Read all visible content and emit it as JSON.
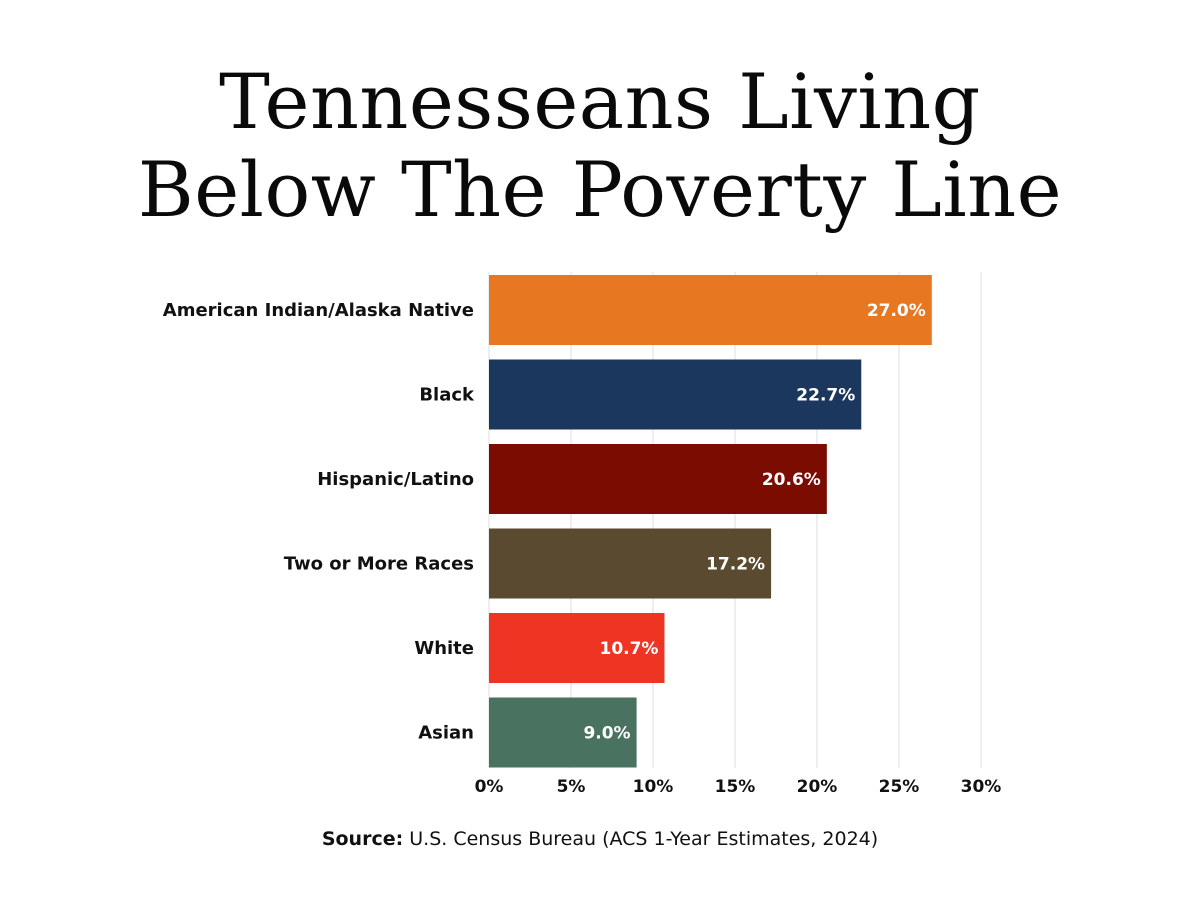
{
  "chart_data": {
    "type": "bar",
    "orientation": "horizontal",
    "title_lines": [
      "Tennesseans Living",
      "Below The Poverty Line"
    ],
    "categories": [
      "American Indian/Alaska Native",
      "Black",
      "Hispanic/Latino",
      "Two or More Races",
      "White",
      "Asian"
    ],
    "values": [
      27.0,
      22.7,
      20.6,
      17.2,
      10.7,
      9.0
    ],
    "value_labels": [
      "27.0%",
      "22.7%",
      "20.6%",
      "17.2%",
      "10.7%",
      "9.0%"
    ],
    "colors": [
      "#e87722",
      "#1c375e",
      "#7a0c02",
      "#5a4a2f",
      "#ee3524",
      "#4a7260"
    ],
    "xlim": [
      0,
      30
    ],
    "x_ticks": [
      0,
      5,
      10,
      15,
      20,
      25,
      30
    ],
    "x_tick_labels": [
      "0%",
      "5%",
      "10%",
      "15%",
      "20%",
      "25%",
      "30%"
    ],
    "grid": "vertical",
    "xlabel": "",
    "ylabel": ""
  },
  "source": {
    "label": "Source:",
    "text": " U.S. Census Bureau (ACS 1-Year Estimates, 2024)"
  }
}
